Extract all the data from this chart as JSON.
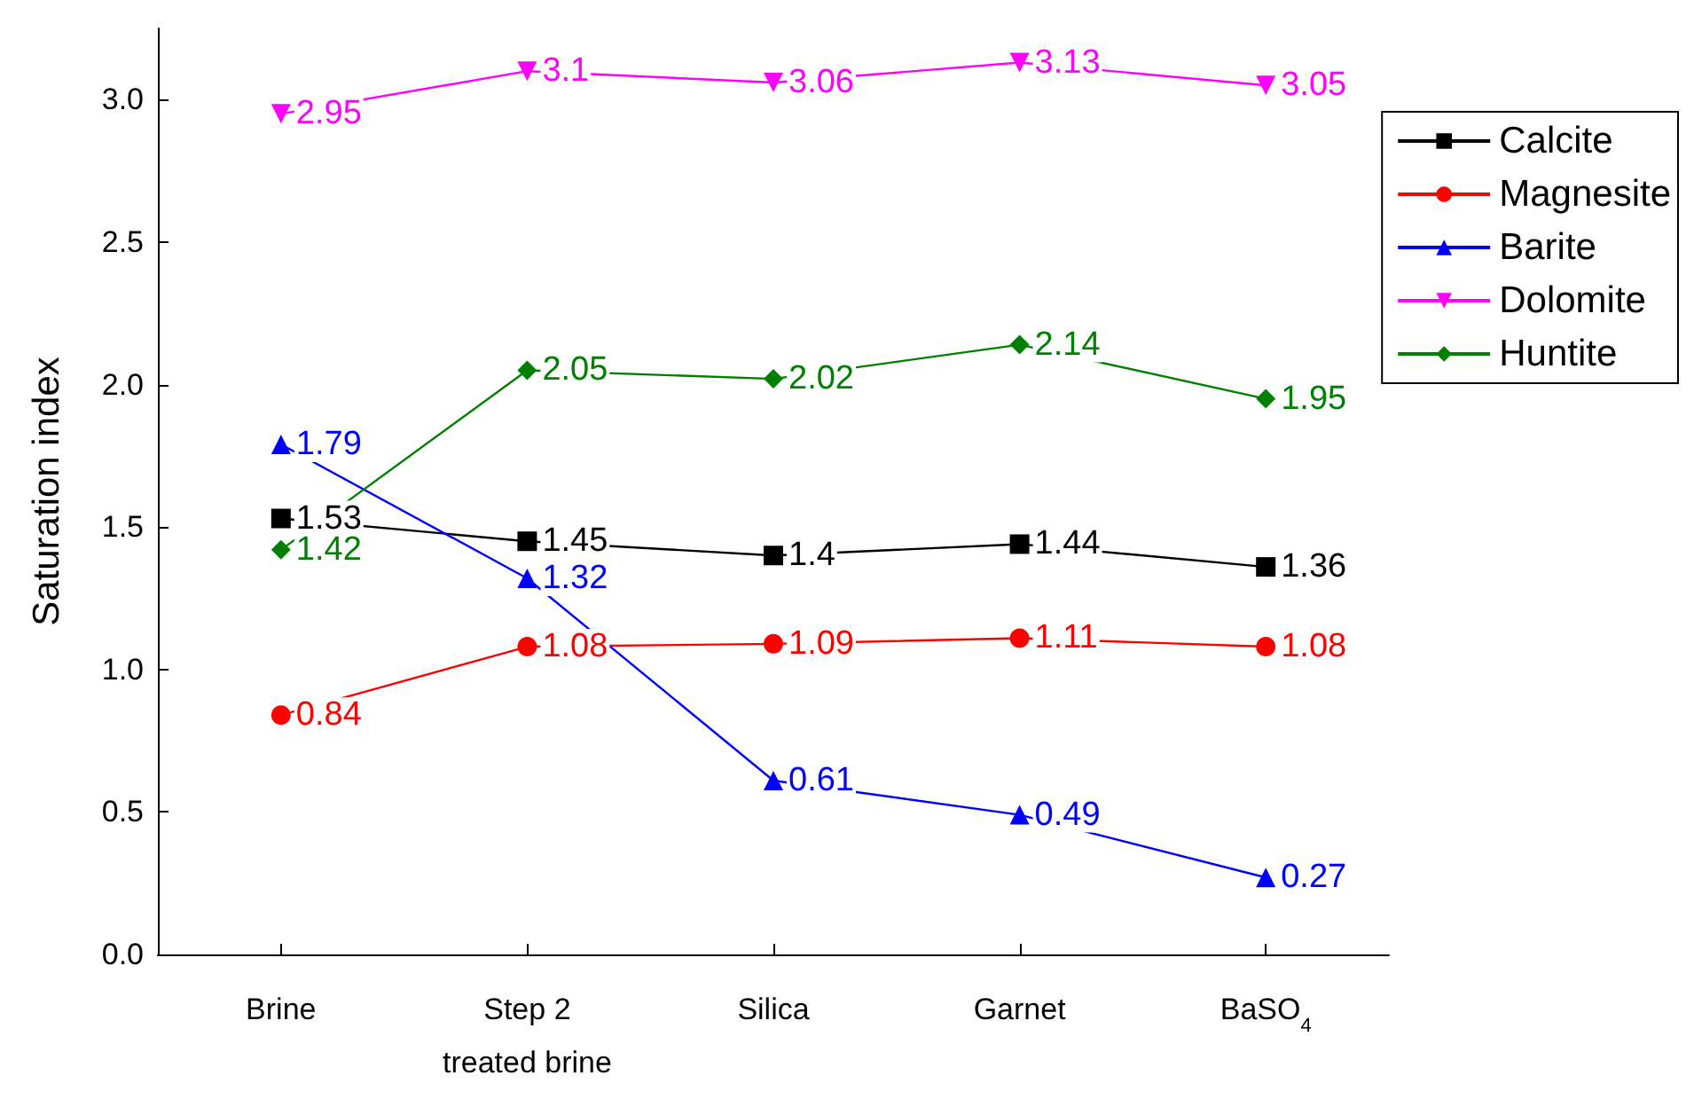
{
  "chart_data": {
    "type": "line",
    "ylabel": "Saturation index",
    "categories": [
      "Brine",
      "Step 2\ntreated brine",
      "Silica",
      "Garnet",
      "BaSO$_{4}$"
    ],
    "series": [
      {
        "name": "Calcite",
        "color": "#000000",
        "marker": "square",
        "values": [
          1.53,
          1.45,
          1.4,
          1.44,
          1.36
        ]
      },
      {
        "name": "Magnesite",
        "color": "#ff0000",
        "marker": "circle",
        "values": [
          0.84,
          1.08,
          1.09,
          1.11,
          1.08
        ]
      },
      {
        "name": "Barite",
        "color": "#0000ff",
        "marker": "triangle",
        "values": [
          1.79,
          1.32,
          0.61,
          0.49,
          0.27
        ]
      },
      {
        "name": "Dolomite",
        "color": "#ff00ff",
        "marker": "triangle-down",
        "values": [
          2.95,
          3.1,
          3.06,
          3.13,
          3.05
        ]
      },
      {
        "name": "Huntite",
        "color": "#008000",
        "marker": "diamond",
        "values": [
          1.42,
          2.05,
          2.02,
          2.14,
          1.95
        ]
      }
    ],
    "ylim": [
      0,
      3.25
    ],
    "yticks": [
      {
        "value": 0,
        "label": "0.0"
      },
      0.5,
      {
        "value": 1,
        "label": "1.0"
      },
      1.5,
      {
        "value": 2,
        "label": "2.0"
      },
      2.5,
      {
        "value": 3,
        "label": "3.0"
      }
    ],
    "data_labels": true,
    "grid": false,
    "legend": "top right",
    "line_style": "solid"
  }
}
